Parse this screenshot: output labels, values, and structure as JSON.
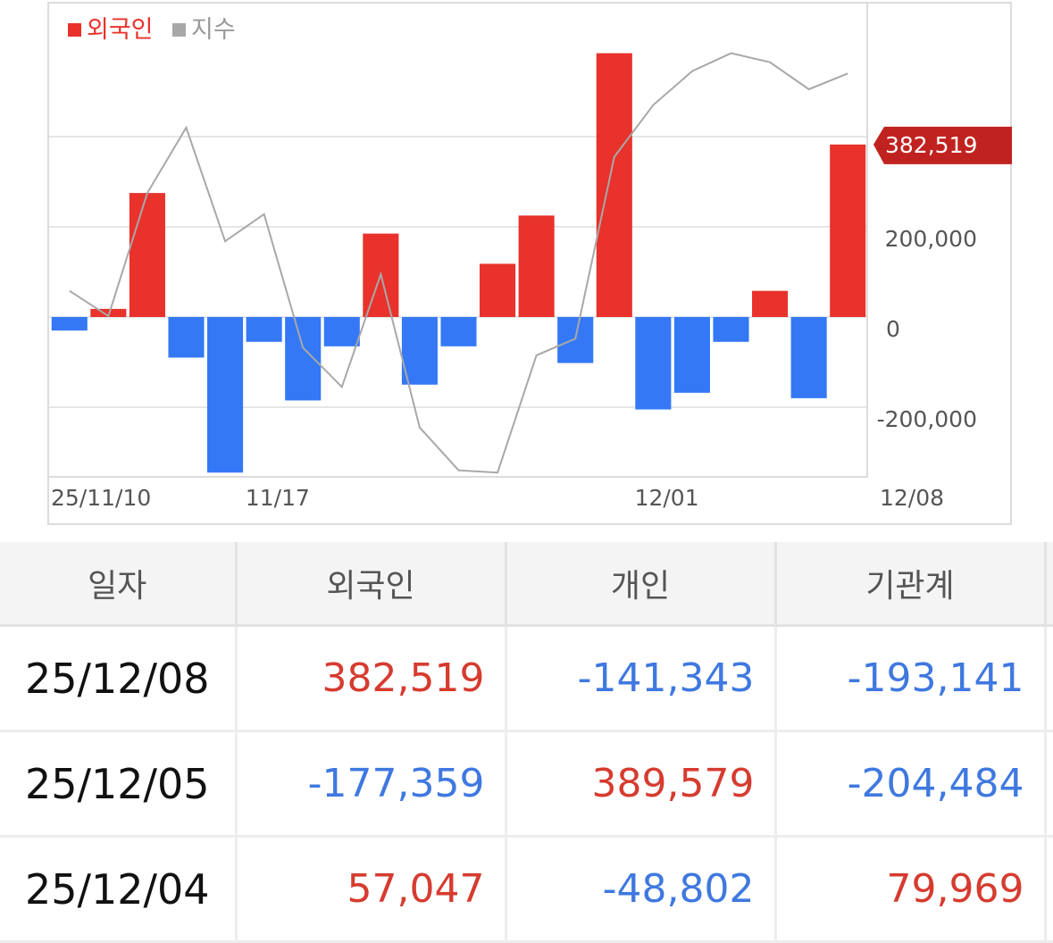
{
  "chart_data": {
    "type": "bar",
    "legend": [
      {
        "label": "외국인",
        "color": "#e8322b"
      },
      {
        "label": "지수",
        "color": "#a8a8a8"
      }
    ],
    "x_tick_labels": [
      "25/11/10",
      "11/17",
      "12/01",
      "12/08"
    ],
    "y_tick_labels": [
      "200,000",
      "0",
      "-200,000"
    ],
    "ylim": [
      -350000,
      700000
    ],
    "series": [
      {
        "name": "외국인",
        "values": [
          -30000,
          18000,
          275000,
          -90000,
          -345000,
          -55000,
          -185000,
          -65000,
          185000,
          -150000,
          -65000,
          118000,
          225000,
          -102000,
          585000,
          -205000,
          -168000,
          -55000,
          58000,
          -180000,
          382519
        ]
      },
      {
        "name": "지수",
        "values": [
          58000,
          2000,
          275000,
          420000,
          168000,
          228000,
          -68000,
          -155000,
          95000,
          -245000,
          -340000,
          -345000,
          -85000,
          -48000,
          355000,
          470000,
          545000,
          585000,
          565000,
          505000,
          540000
        ]
      }
    ],
    "current_value_label": "382,519",
    "colors": {
      "positive": "#e8322b",
      "negative": "#3478f6",
      "index_line": "#a8a8a8",
      "current_flag": "#c0231f"
    }
  },
  "table": {
    "headers": [
      "일자",
      "외국인",
      "개인",
      "기관계"
    ],
    "rows": [
      {
        "date": "25/12/08",
        "foreign": "382,519",
        "individual": "-141,343",
        "institution": "-193,141"
      },
      {
        "date": "25/12/05",
        "foreign": "-177,359",
        "individual": "389,579",
        "institution": "-204,484"
      },
      {
        "date": "25/12/04",
        "foreign": "57,047",
        "individual": "-48,802",
        "institution": "79,969"
      }
    ]
  }
}
